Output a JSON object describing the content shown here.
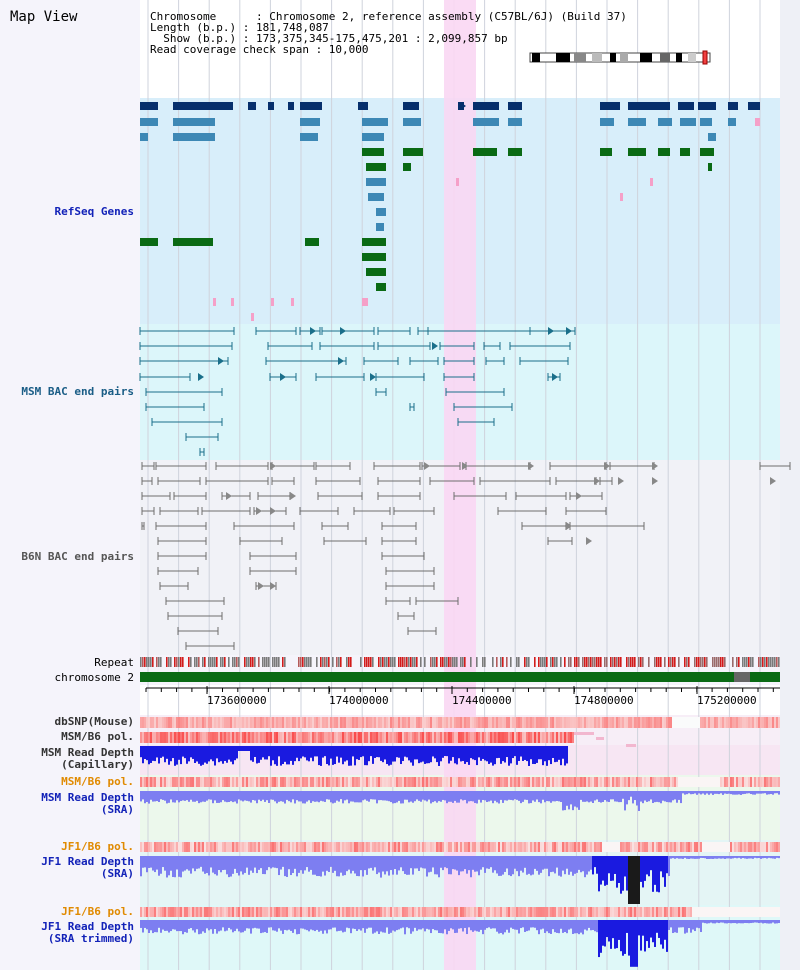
{
  "title": "Map View",
  "info": {
    "line1": "Chromosome      : Chromosome 2, reference assembly (C57BL/6J) (Build 37)",
    "line2": "Length (b.p.) : 181,748,087",
    "line3": "  Show (b.p.) : 173,375,345-175,475,201 : 2,099,857 bp",
    "line4": "Read coverage check span : 10,000"
  },
  "tracks": {
    "refseq": "RefSeq Genes",
    "msm_bac": "MSM BAC end pairs",
    "b6n_bac": "B6N BAC end pairs",
    "repeat": "Repeat",
    "chromosome": "chromosome 2",
    "dbsnp": "dbSNP(Mouse)",
    "msm_b6_pol_1": "MSM/B6 pol.",
    "msm_read_depth_cap_1": "MSM Read Depth",
    "msm_read_depth_cap_2": "(Capillary)",
    "msm_b6_pol_2": "MSM/B6 pol.",
    "msm_read_depth_sra_1": "MSM Read Depth",
    "msm_read_depth_sra_2": "(SRA)",
    "jf1_b6_pol_1": "JF1/B6 pol.",
    "jf1_read_depth_sra_1": "JF1 Read Depth",
    "jf1_read_depth_sra_2": "(SRA)",
    "jf1_b6_pol_2": "JF1/B6 pol.",
    "jf1_read_depth_trim_1": "JF1 Read Depth",
    "jf1_read_depth_trim_2": "(SRA trimmed)"
  },
  "ruler": {
    "ticks": [
      "173600000",
      "174000000",
      "174400000",
      "174800000",
      "175200000"
    ]
  },
  "colors": {
    "refseq_bg": "#d8eefa",
    "msm_bg": "#dcf6fa",
    "b6n_bg": "#f1f2f7",
    "highlight": "#f9d7f3",
    "gene_dark": "#062f6c",
    "gene_mid": "#3d88b5",
    "gene_green": "#0a6a14",
    "msm_line": "#1a6f8a",
    "b6n_line": "#6e6e6e",
    "chromosome": "#0a6a14",
    "depth_blue": "#1a1ae0",
    "depth_light": "#7d7ef1"
  }
}
